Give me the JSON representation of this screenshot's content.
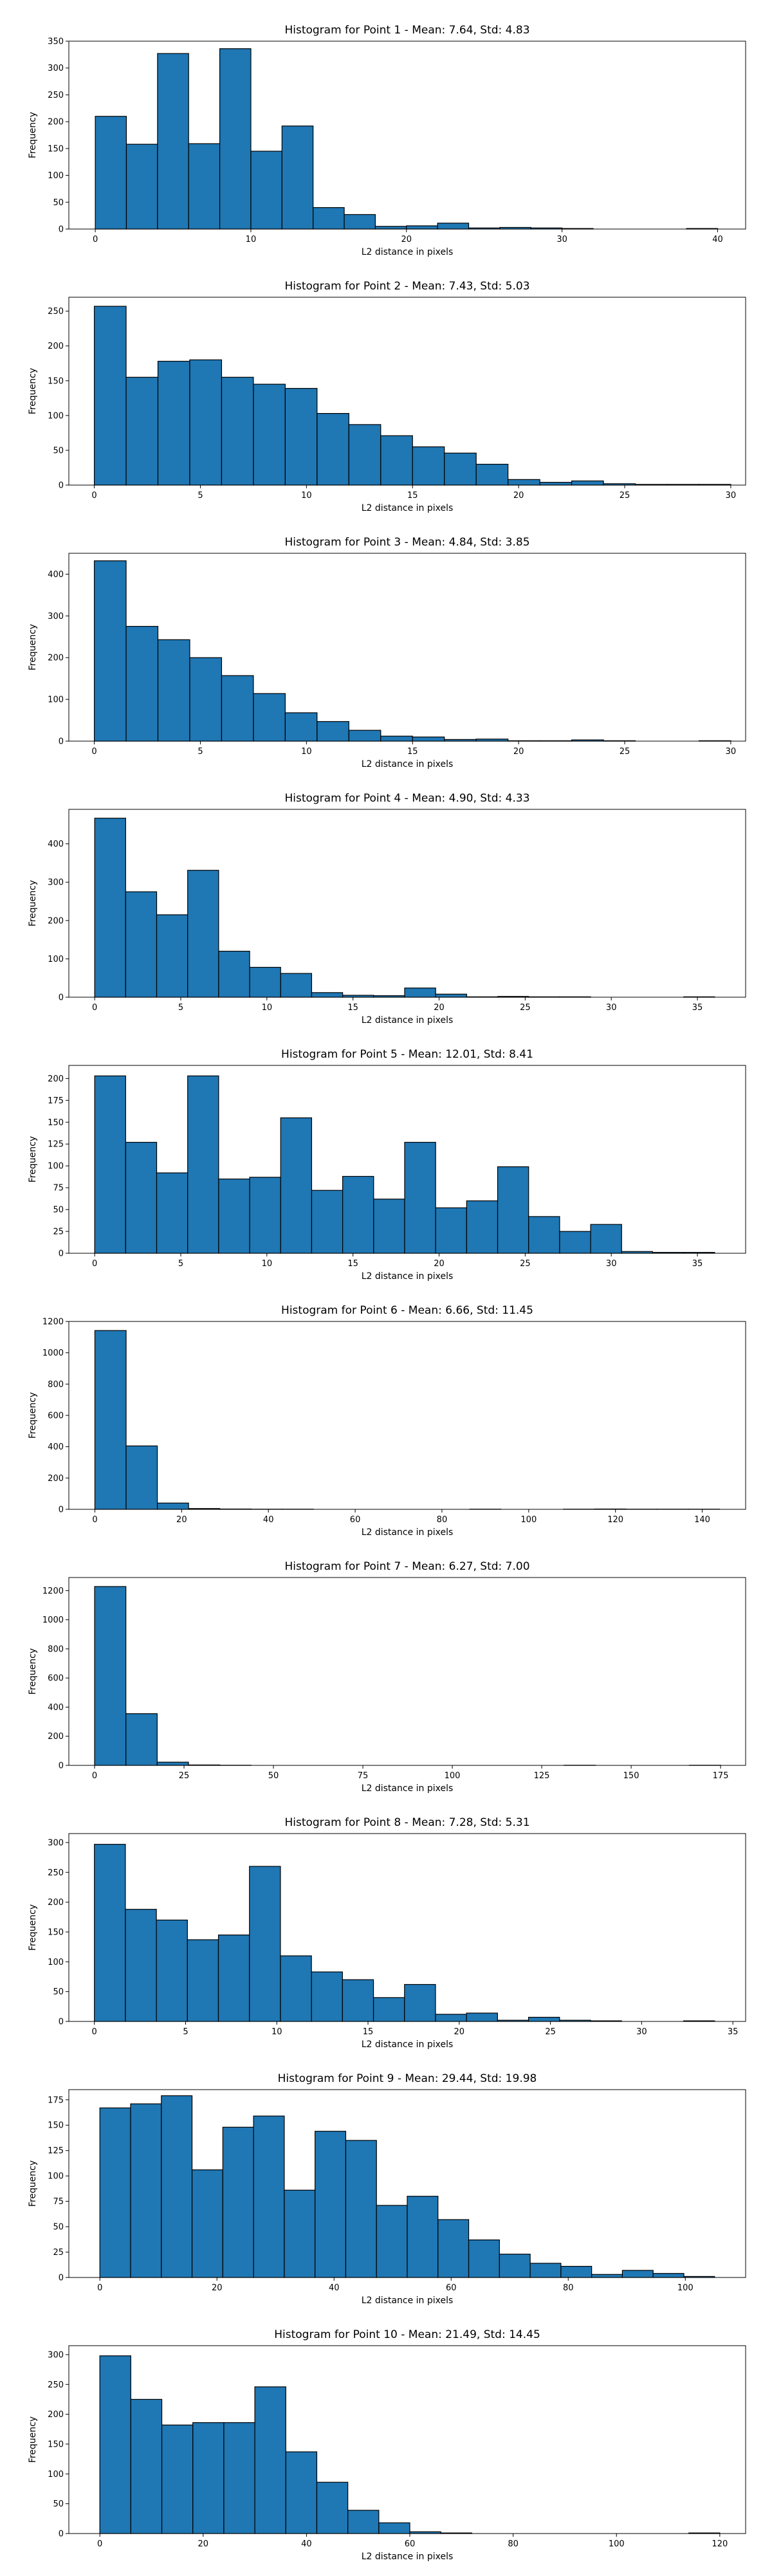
{
  "figure": {
    "background": "#ffffff"
  },
  "style": {
    "bar_fill": "#1f77b4",
    "bar_edge": "#000000",
    "axis_color": "#000000"
  },
  "chart_data": [
    {
      "type": "bar",
      "title": "Histogram for Point 1 - Mean: 7.64, Std: 4.83",
      "xlabel": "L2 distance in pixels",
      "ylabel": "Frequency",
      "xlim": [
        -1.7,
        41.8
      ],
      "ylim": [
        0,
        350
      ],
      "xticks": [
        0,
        10,
        20,
        30,
        40
      ],
      "yticks": [
        0,
        50,
        100,
        150,
        200,
        250,
        300,
        350
      ],
      "bin_edges": [
        0,
        2,
        4,
        6,
        8,
        10,
        12,
        14,
        16,
        18,
        20,
        22,
        24,
        26,
        28,
        30,
        32,
        34,
        36,
        38,
        40,
        42
      ],
      "values": [
        210,
        158,
        327,
        159,
        336,
        145,
        192,
        40,
        27,
        5,
        6,
        11,
        2,
        3,
        2,
        1,
        0,
        0,
        0,
        1,
        0
      ]
    },
    {
      "type": "bar",
      "title": "Histogram for Point 2 - Mean: 7.43, Std: 5.03",
      "xlabel": "L2 distance in pixels",
      "ylabel": "Frequency",
      "xlim": [
        -1.2,
        30.7
      ],
      "ylim": [
        0,
        270
      ],
      "xticks": [
        0,
        5,
        10,
        15,
        20,
        25,
        30
      ],
      "yticks": [
        0,
        50,
        100,
        150,
        200,
        250
      ],
      "bin_edges": [
        0,
        1.5,
        3,
        4.5,
        6,
        7.5,
        9,
        10.5,
        12,
        13.5,
        15,
        16.5,
        18,
        19.5,
        21,
        22.5,
        24,
        25.5,
        27,
        28.5,
        30
      ],
      "values": [
        257,
        155,
        178,
        180,
        155,
        145,
        139,
        103,
        87,
        71,
        55,
        46,
        30,
        8,
        4,
        6,
        2,
        1,
        1,
        1
      ]
    },
    {
      "type": "bar",
      "title": "Histogram for Point 3 - Mean: 4.84, Std: 3.85",
      "xlabel": "L2 distance in pixels",
      "ylabel": "Frequency",
      "xlim": [
        -1.2,
        30.7
      ],
      "ylim": [
        0,
        450
      ],
      "xticks": [
        0,
        5,
        10,
        15,
        20,
        25,
        30
      ],
      "yticks": [
        0,
        100,
        200,
        300,
        400
      ],
      "bin_edges": [
        0,
        1.5,
        3,
        4.5,
        6,
        7.5,
        9,
        10.5,
        12,
        13.5,
        15,
        16.5,
        18,
        19.5,
        21,
        22.5,
        24,
        25.5,
        27,
        28.5,
        30
      ],
      "values": [
        432,
        275,
        243,
        200,
        157,
        114,
        68,
        47,
        26,
        12,
        10,
        4,
        5,
        1,
        1,
        3,
        1,
        0,
        0,
        1
      ]
    },
    {
      "type": "bar",
      "title": "Histogram for Point 4 - Mean: 4.90, Std: 4.33",
      "xlabel": "L2 distance in pixels",
      "ylabel": "Frequency",
      "xlim": [
        -1.5,
        37.8
      ],
      "ylim": [
        0,
        490
      ],
      "xticks": [
        0,
        5,
        10,
        15,
        20,
        25,
        30,
        35
      ],
      "yticks": [
        0,
        100,
        200,
        300,
        400
      ],
      "bin_edges": [
        0,
        1.8,
        3.6,
        5.4,
        7.2,
        9,
        10.8,
        12.6,
        14.4,
        16.2,
        18,
        19.8,
        21.6,
        23.4,
        25.2,
        27,
        28.8,
        30.6,
        32.4,
        34.2,
        36
      ],
      "values": [
        467,
        275,
        215,
        331,
        120,
        78,
        62,
        12,
        5,
        4,
        24,
        8,
        1,
        2,
        1,
        1,
        0,
        0,
        0,
        1
      ]
    },
    {
      "type": "bar",
      "title": "Histogram for Point 5 - Mean: 12.01, Std: 8.41",
      "xlabel": "L2 distance in pixels",
      "ylabel": "Frequency",
      "xlim": [
        -1.5,
        37.8
      ],
      "ylim": [
        0,
        215
      ],
      "xticks": [
        0,
        5,
        10,
        15,
        20,
        25,
        30,
        35
      ],
      "yticks": [
        0,
        25,
        50,
        75,
        100,
        125,
        150,
        175,
        200
      ],
      "bin_edges": [
        0,
        1.8,
        3.6,
        5.4,
        7.2,
        9,
        10.8,
        12.6,
        14.4,
        16.2,
        18,
        19.8,
        21.6,
        23.4,
        25.2,
        27,
        28.8,
        30.6,
        32.4,
        34.2,
        36
      ],
      "values": [
        203,
        127,
        92,
        203,
        85,
        87,
        155,
        72,
        88,
        62,
        127,
        52,
        60,
        99,
        42,
        25,
        33,
        2,
        1,
        1
      ]
    },
    {
      "type": "bar",
      "title": "Histogram for Point 6 - Mean: 6.66, Std: 11.45",
      "xlabel": "L2 distance in pixels",
      "ylabel": "Frequency",
      "xlim": [
        -6,
        150
      ],
      "ylim": [
        0,
        1200
      ],
      "xticks": [
        0,
        20,
        40,
        60,
        80,
        100,
        120,
        140
      ],
      "yticks": [
        0,
        200,
        400,
        600,
        800,
        1000,
        1200
      ],
      "bin_edges": [
        0,
        7.2,
        14.4,
        21.6,
        28.8,
        36,
        43.2,
        50.4,
        57.6,
        64.8,
        72,
        79.2,
        86.4,
        93.6,
        100.8,
        108,
        115.2,
        122.4,
        129.6,
        136.8,
        144
      ],
      "values": [
        1142,
        405,
        40,
        5,
        2,
        1,
        1,
        0,
        0,
        0,
        0,
        0,
        1,
        0,
        0,
        1,
        2,
        1,
        1,
        1
      ]
    },
    {
      "type": "bar",
      "title": "Histogram for Point 7 - Mean: 6.27, Std: 7.00",
      "xlabel": "L2 distance in pixels",
      "ylabel": "Frequency",
      "xlim": [
        -7.2,
        182
      ],
      "ylim": [
        0,
        1290
      ],
      "xticks": [
        0,
        25,
        50,
        75,
        100,
        125,
        150,
        175
      ],
      "yticks": [
        0,
        200,
        400,
        600,
        800,
        1000,
        1200
      ],
      "bin_edges": [
        0,
        8.75,
        17.5,
        26.25,
        35,
        43.75,
        52.5,
        61.25,
        70,
        78.75,
        87.5,
        96.25,
        105,
        113.75,
        122.5,
        131.25,
        140,
        148.75,
        157.5,
        166.25,
        175
      ],
      "values": [
        1228,
        355,
        22,
        3,
        1,
        0,
        0,
        0,
        0,
        0,
        0,
        0,
        0,
        0,
        0,
        1,
        0,
        0,
        0,
        1
      ]
    },
    {
      "type": "bar",
      "title": "Histogram for Point 8 - Mean: 7.28, Std: 5.31",
      "xlabel": "L2 distance in pixels",
      "ylabel": "Frequency",
      "xlim": [
        -1.4,
        35.7
      ],
      "ylim": [
        0,
        315
      ],
      "xticks": [
        0,
        5,
        10,
        15,
        20,
        25,
        30,
        35
      ],
      "yticks": [
        0,
        50,
        100,
        150,
        200,
        250,
        300
      ],
      "bin_edges": [
        0,
        1.7,
        3.4,
        5.1,
        6.8,
        8.5,
        10.2,
        11.9,
        13.6,
        15.3,
        17,
        18.7,
        20.4,
        22.1,
        23.8,
        25.5,
        27.2,
        28.9,
        30.6,
        32.3,
        34
      ],
      "values": [
        297,
        188,
        170,
        137,
        145,
        260,
        110,
        83,
        70,
        40,
        62,
        12,
        14,
        2,
        7,
        2,
        1,
        0,
        0,
        1
      ]
    },
    {
      "type": "bar",
      "title": "Histogram for Point 9 - Mean: 29.44, Std: 19.98",
      "xlabel": "L2 distance in pixels",
      "ylabel": "Frequency",
      "xlim": [
        -5.3,
        110.3
      ],
      "ylim": [
        0,
        185
      ],
      "xticks": [
        0,
        20,
        40,
        60,
        80,
        100
      ],
      "yticks": [
        0,
        25,
        50,
        75,
        100,
        125,
        150,
        175
      ],
      "bin_edges": [
        0,
        5.25,
        10.5,
        15.75,
        21,
        26.25,
        31.5,
        36.75,
        42,
        47.25,
        52.5,
        57.75,
        63,
        68.25,
        73.5,
        78.75,
        84,
        89.25,
        94.5,
        99.75,
        105
      ],
      "values": [
        167,
        171,
        179,
        106,
        148,
        159,
        86,
        144,
        135,
        71,
        80,
        57,
        37,
        23,
        14,
        11,
        3,
        7,
        4,
        1
      ]
    },
    {
      "type": "bar",
      "title": "Histogram for Point 10 - Mean: 21.49, Std: 14.45",
      "xlabel": "L2 distance in pixels",
      "ylabel": "Frequency",
      "xlim": [
        -6,
        125
      ],
      "ylim": [
        0,
        315
      ],
      "xticks": [
        0,
        20,
        40,
        60,
        80,
        100,
        120
      ],
      "yticks": [
        0,
        50,
        100,
        150,
        200,
        250,
        300
      ],
      "bin_edges": [
        0,
        6,
        12,
        18,
        24,
        30,
        36,
        42,
        48,
        54,
        60,
        66,
        72,
        78,
        84,
        90,
        96,
        102,
        108,
        114,
        120
      ],
      "values": [
        298,
        225,
        182,
        186,
        186,
        246,
        137,
        86,
        39,
        18,
        3,
        1,
        0,
        0,
        0,
        0,
        0,
        0,
        0,
        1
      ]
    }
  ]
}
